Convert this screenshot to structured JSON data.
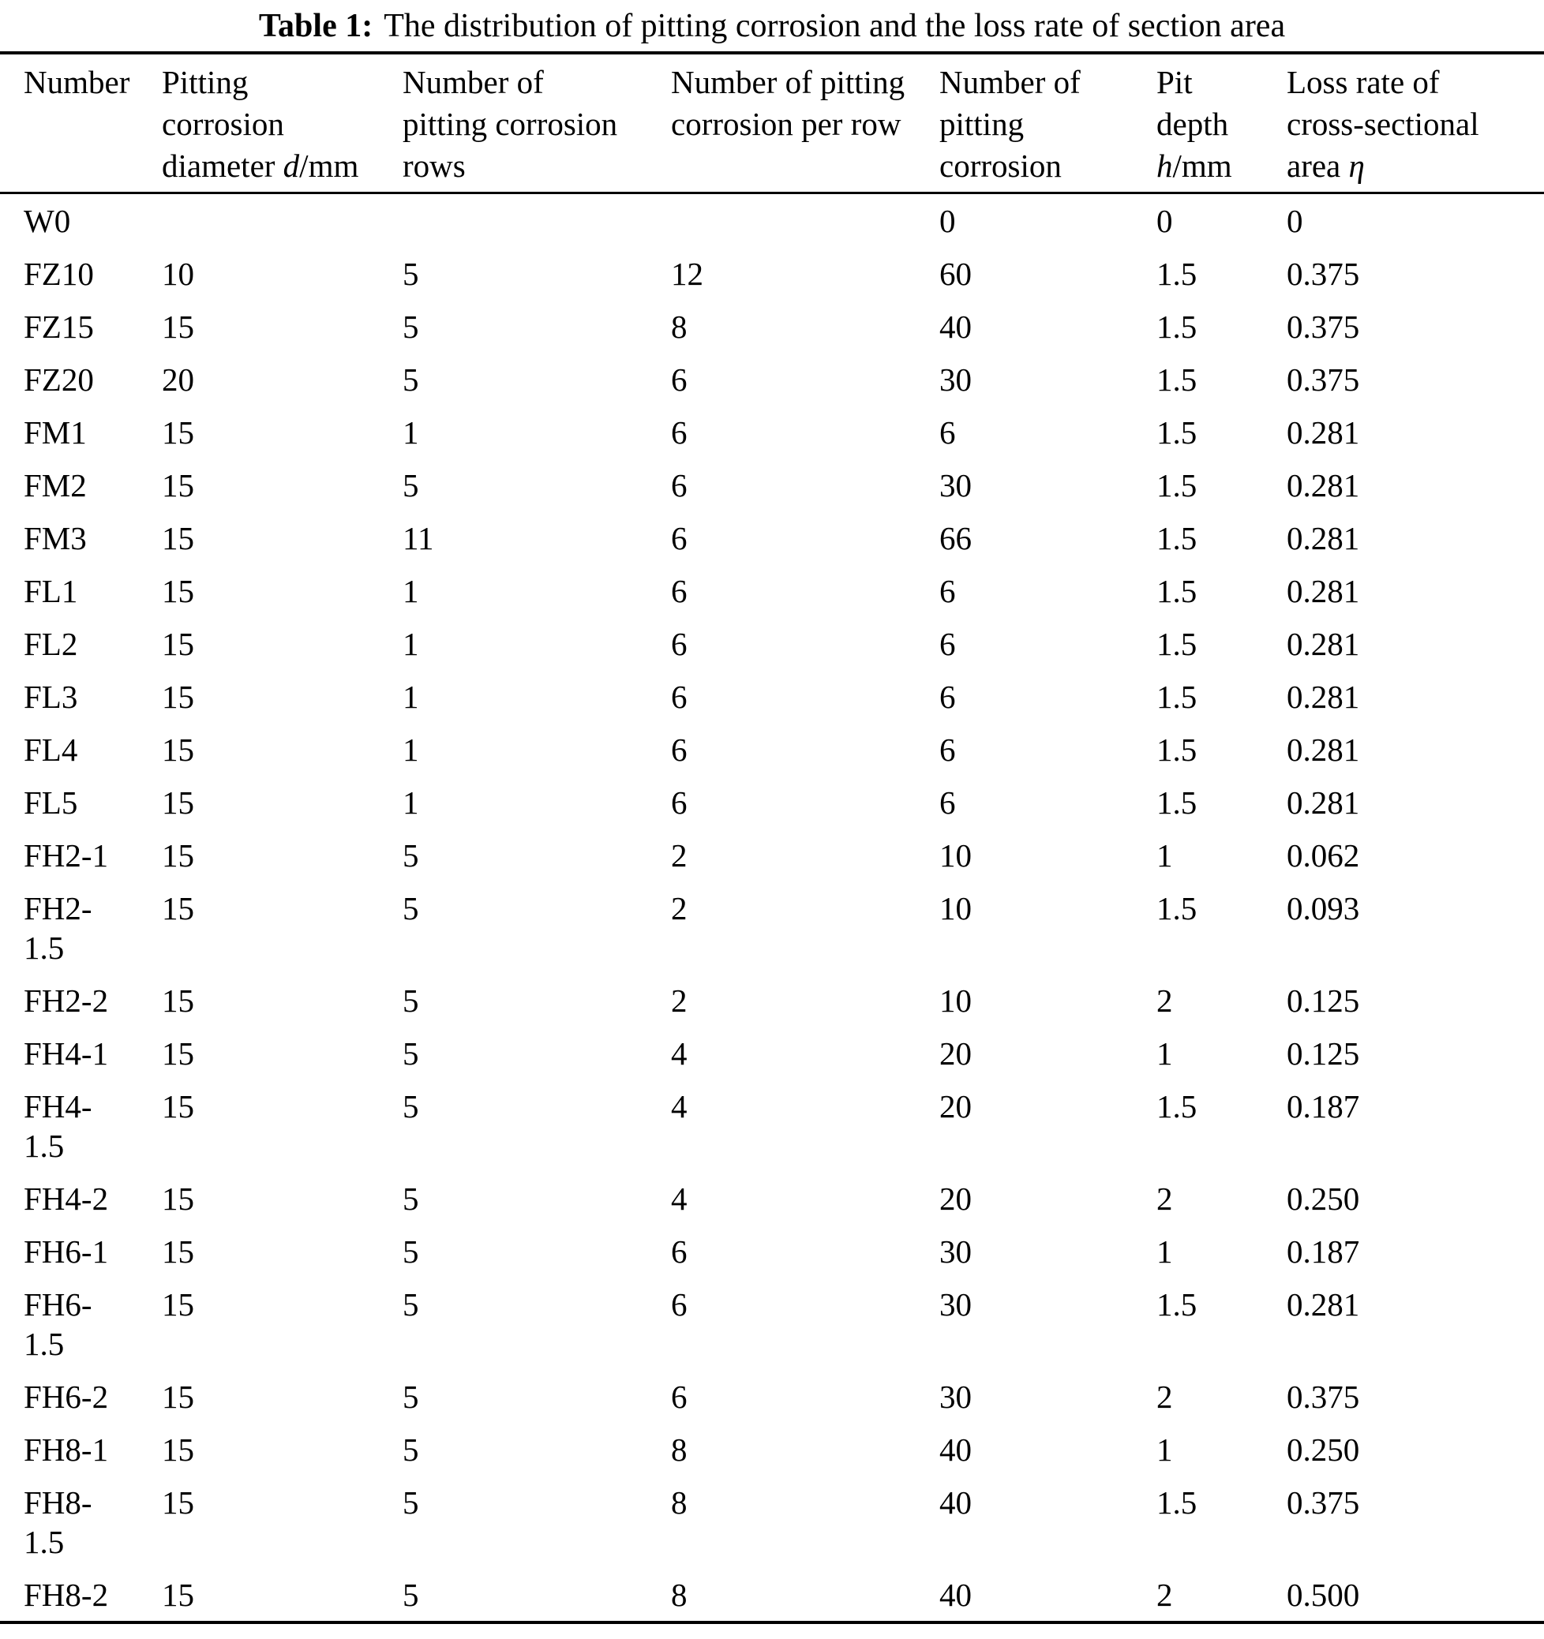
{
  "title": {
    "label": "Table 1:",
    "text": "The distribution of pitting corrosion and the loss rate of section area"
  },
  "colors": {
    "text": "#000000",
    "background": "#ffffff",
    "rule": "#000000"
  },
  "table": {
    "columns": [
      {
        "id": "number",
        "header": "Number"
      },
      {
        "id": "diameter",
        "header_pre": "Pitting\ncorrosion\ndiameter ",
        "header_italic": "d",
        "header_post": "/mm"
      },
      {
        "id": "rows",
        "header": "Number of\npitting corrosion\nrows"
      },
      {
        "id": "per-row",
        "header": "Number of pitting\ncorrosion per row"
      },
      {
        "id": "count",
        "header": "Number of\npitting\ncorrosion"
      },
      {
        "id": "pit-depth",
        "header_pre": "Pit\ndepth\n",
        "header_italic": "h",
        "header_post": "/mm"
      },
      {
        "id": "loss-rate",
        "header_pre": "Loss rate of\ncross-sectional\narea ",
        "header_italic": "η",
        "header_post": ""
      }
    ],
    "rows": [
      [
        "W0",
        "",
        "",
        "",
        "0",
        "0",
        "0"
      ],
      [
        "FZ10",
        "10",
        "5",
        "12",
        "60",
        "1.5",
        "0.375"
      ],
      [
        "FZ15",
        "15",
        "5",
        "8",
        "40",
        "1.5",
        "0.375"
      ],
      [
        "FZ20",
        "20",
        "5",
        "6",
        "30",
        "1.5",
        "0.375"
      ],
      [
        "FM1",
        "15",
        "1",
        "6",
        "6",
        "1.5",
        "0.281"
      ],
      [
        "FM2",
        "15",
        "5",
        "6",
        "30",
        "1.5",
        "0.281"
      ],
      [
        "FM3",
        "15",
        "11",
        "6",
        "66",
        "1.5",
        "0.281"
      ],
      [
        "FL1",
        "15",
        "1",
        "6",
        "6",
        "1.5",
        "0.281"
      ],
      [
        "FL2",
        "15",
        "1",
        "6",
        "6",
        "1.5",
        "0.281"
      ],
      [
        "FL3",
        "15",
        "1",
        "6",
        "6",
        "1.5",
        "0.281"
      ],
      [
        "FL4",
        "15",
        "1",
        "6",
        "6",
        "1.5",
        "0.281"
      ],
      [
        "FL5",
        "15",
        "1",
        "6",
        "6",
        "1.5",
        "0.281"
      ],
      [
        "FH2-1",
        "15",
        "5",
        "2",
        "10",
        "1",
        "0.062"
      ],
      [
        "FH2-\n1.5",
        "15",
        "5",
        "2",
        "10",
        "1.5",
        "0.093"
      ],
      [
        "FH2-2",
        "15",
        "5",
        "2",
        "10",
        "2",
        "0.125"
      ],
      [
        "FH4-1",
        "15",
        "5",
        "4",
        "20",
        "1",
        "0.125"
      ],
      [
        "FH4-\n1.5",
        "15",
        "5",
        "4",
        "20",
        "1.5",
        "0.187"
      ],
      [
        "FH4-2",
        "15",
        "5",
        "4",
        "20",
        "2",
        "0.250"
      ],
      [
        "FH6-1",
        "15",
        "5",
        "6",
        "30",
        "1",
        "0.187"
      ],
      [
        "FH6-\n1.5",
        "15",
        "5",
        "6",
        "30",
        "1.5",
        "0.281"
      ],
      [
        "FH6-2",
        "15",
        "5",
        "6",
        "30",
        "2",
        "0.375"
      ],
      [
        "FH8-1",
        "15",
        "5",
        "8",
        "40",
        "1",
        "0.250"
      ],
      [
        "FH8-\n1.5",
        "15",
        "5",
        "8",
        "40",
        "1.5",
        "0.375"
      ],
      [
        "FH8-2",
        "15",
        "5",
        "8",
        "40",
        "2",
        "0.500"
      ]
    ]
  }
}
